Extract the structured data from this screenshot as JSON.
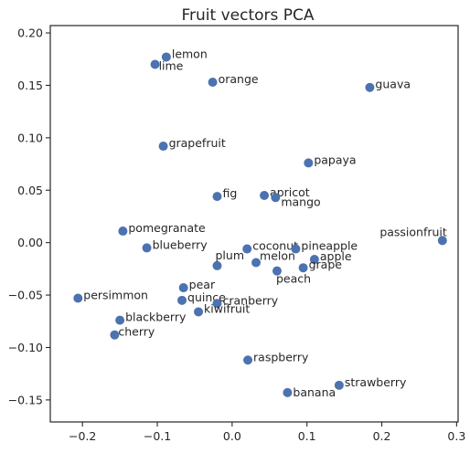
{
  "chart_data": {
    "type": "scatter",
    "title": "Fruit vectors PCA",
    "xlabel": "",
    "ylabel": "",
    "xlim": [
      -0.243,
      0.302
    ],
    "ylim": [
      -0.171,
      0.207
    ],
    "xticks": [
      -0.2,
      -0.1,
      0.0,
      0.1,
      0.2,
      0.3
    ],
    "xtick_labels": [
      "−0.2",
      "−0.1",
      "0.0",
      "0.1",
      "0.2",
      "0.3"
    ],
    "yticks": [
      -0.15,
      -0.1,
      -0.05,
      0.0,
      0.05,
      0.1,
      0.15,
      0.2
    ],
    "ytick_labels": [
      "−0.15",
      "−0.10",
      "−0.05",
      "0.00",
      "0.05",
      "0.10",
      "0.15",
      "0.20"
    ],
    "grid": false,
    "marker_color": "#4c72b0",
    "points": [
      {
        "label": "lemon",
        "x": -0.088,
        "y": 0.177
      },
      {
        "label": "lime",
        "x": -0.103,
        "y": 0.17
      },
      {
        "label": "orange",
        "x": -0.026,
        "y": 0.153
      },
      {
        "label": "guava",
        "x": 0.184,
        "y": 0.148
      },
      {
        "label": "grapefruit",
        "x": -0.092,
        "y": 0.092
      },
      {
        "label": "papaya",
        "x": 0.102,
        "y": 0.076
      },
      {
        "label": "apricot",
        "x": 0.043,
        "y": 0.045
      },
      {
        "label": "fig",
        "x": -0.02,
        "y": 0.044
      },
      {
        "label": "mango",
        "x": 0.058,
        "y": 0.043
      },
      {
        "label": "pomegranate",
        "x": -0.146,
        "y": 0.011
      },
      {
        "label": "passionfruit",
        "x": 0.281,
        "y": 0.002
      },
      {
        "label": "blueberry",
        "x": -0.114,
        "y": -0.005
      },
      {
        "label": "coconut",
        "x": 0.02,
        "y": -0.006
      },
      {
        "label": "pineapple",
        "x": 0.085,
        "y": -0.006
      },
      {
        "label": "apple",
        "x": 0.11,
        "y": -0.016
      },
      {
        "label": "plum",
        "x": -0.02,
        "y": -0.022
      },
      {
        "label": "melon",
        "x": 0.032,
        "y": -0.019
      },
      {
        "label": "grape",
        "x": 0.095,
        "y": -0.024
      },
      {
        "label": "peach",
        "x": 0.06,
        "y": -0.027
      },
      {
        "label": "pear",
        "x": -0.065,
        "y": -0.043
      },
      {
        "label": "persimmon",
        "x": -0.206,
        "y": -0.053
      },
      {
        "label": "quince",
        "x": -0.067,
        "y": -0.055
      },
      {
        "label": "cranberry",
        "x": -0.02,
        "y": -0.058
      },
      {
        "label": "kiwifruit",
        "x": -0.045,
        "y": -0.066
      },
      {
        "label": "blackberry",
        "x": -0.15,
        "y": -0.074
      },
      {
        "label": "cherry",
        "x": -0.157,
        "y": -0.088
      },
      {
        "label": "raspberry",
        "x": 0.021,
        "y": -0.112
      },
      {
        "label": "strawberry",
        "x": 0.143,
        "y": -0.136
      },
      {
        "label": "banana",
        "x": 0.074,
        "y": -0.143
      }
    ]
  }
}
